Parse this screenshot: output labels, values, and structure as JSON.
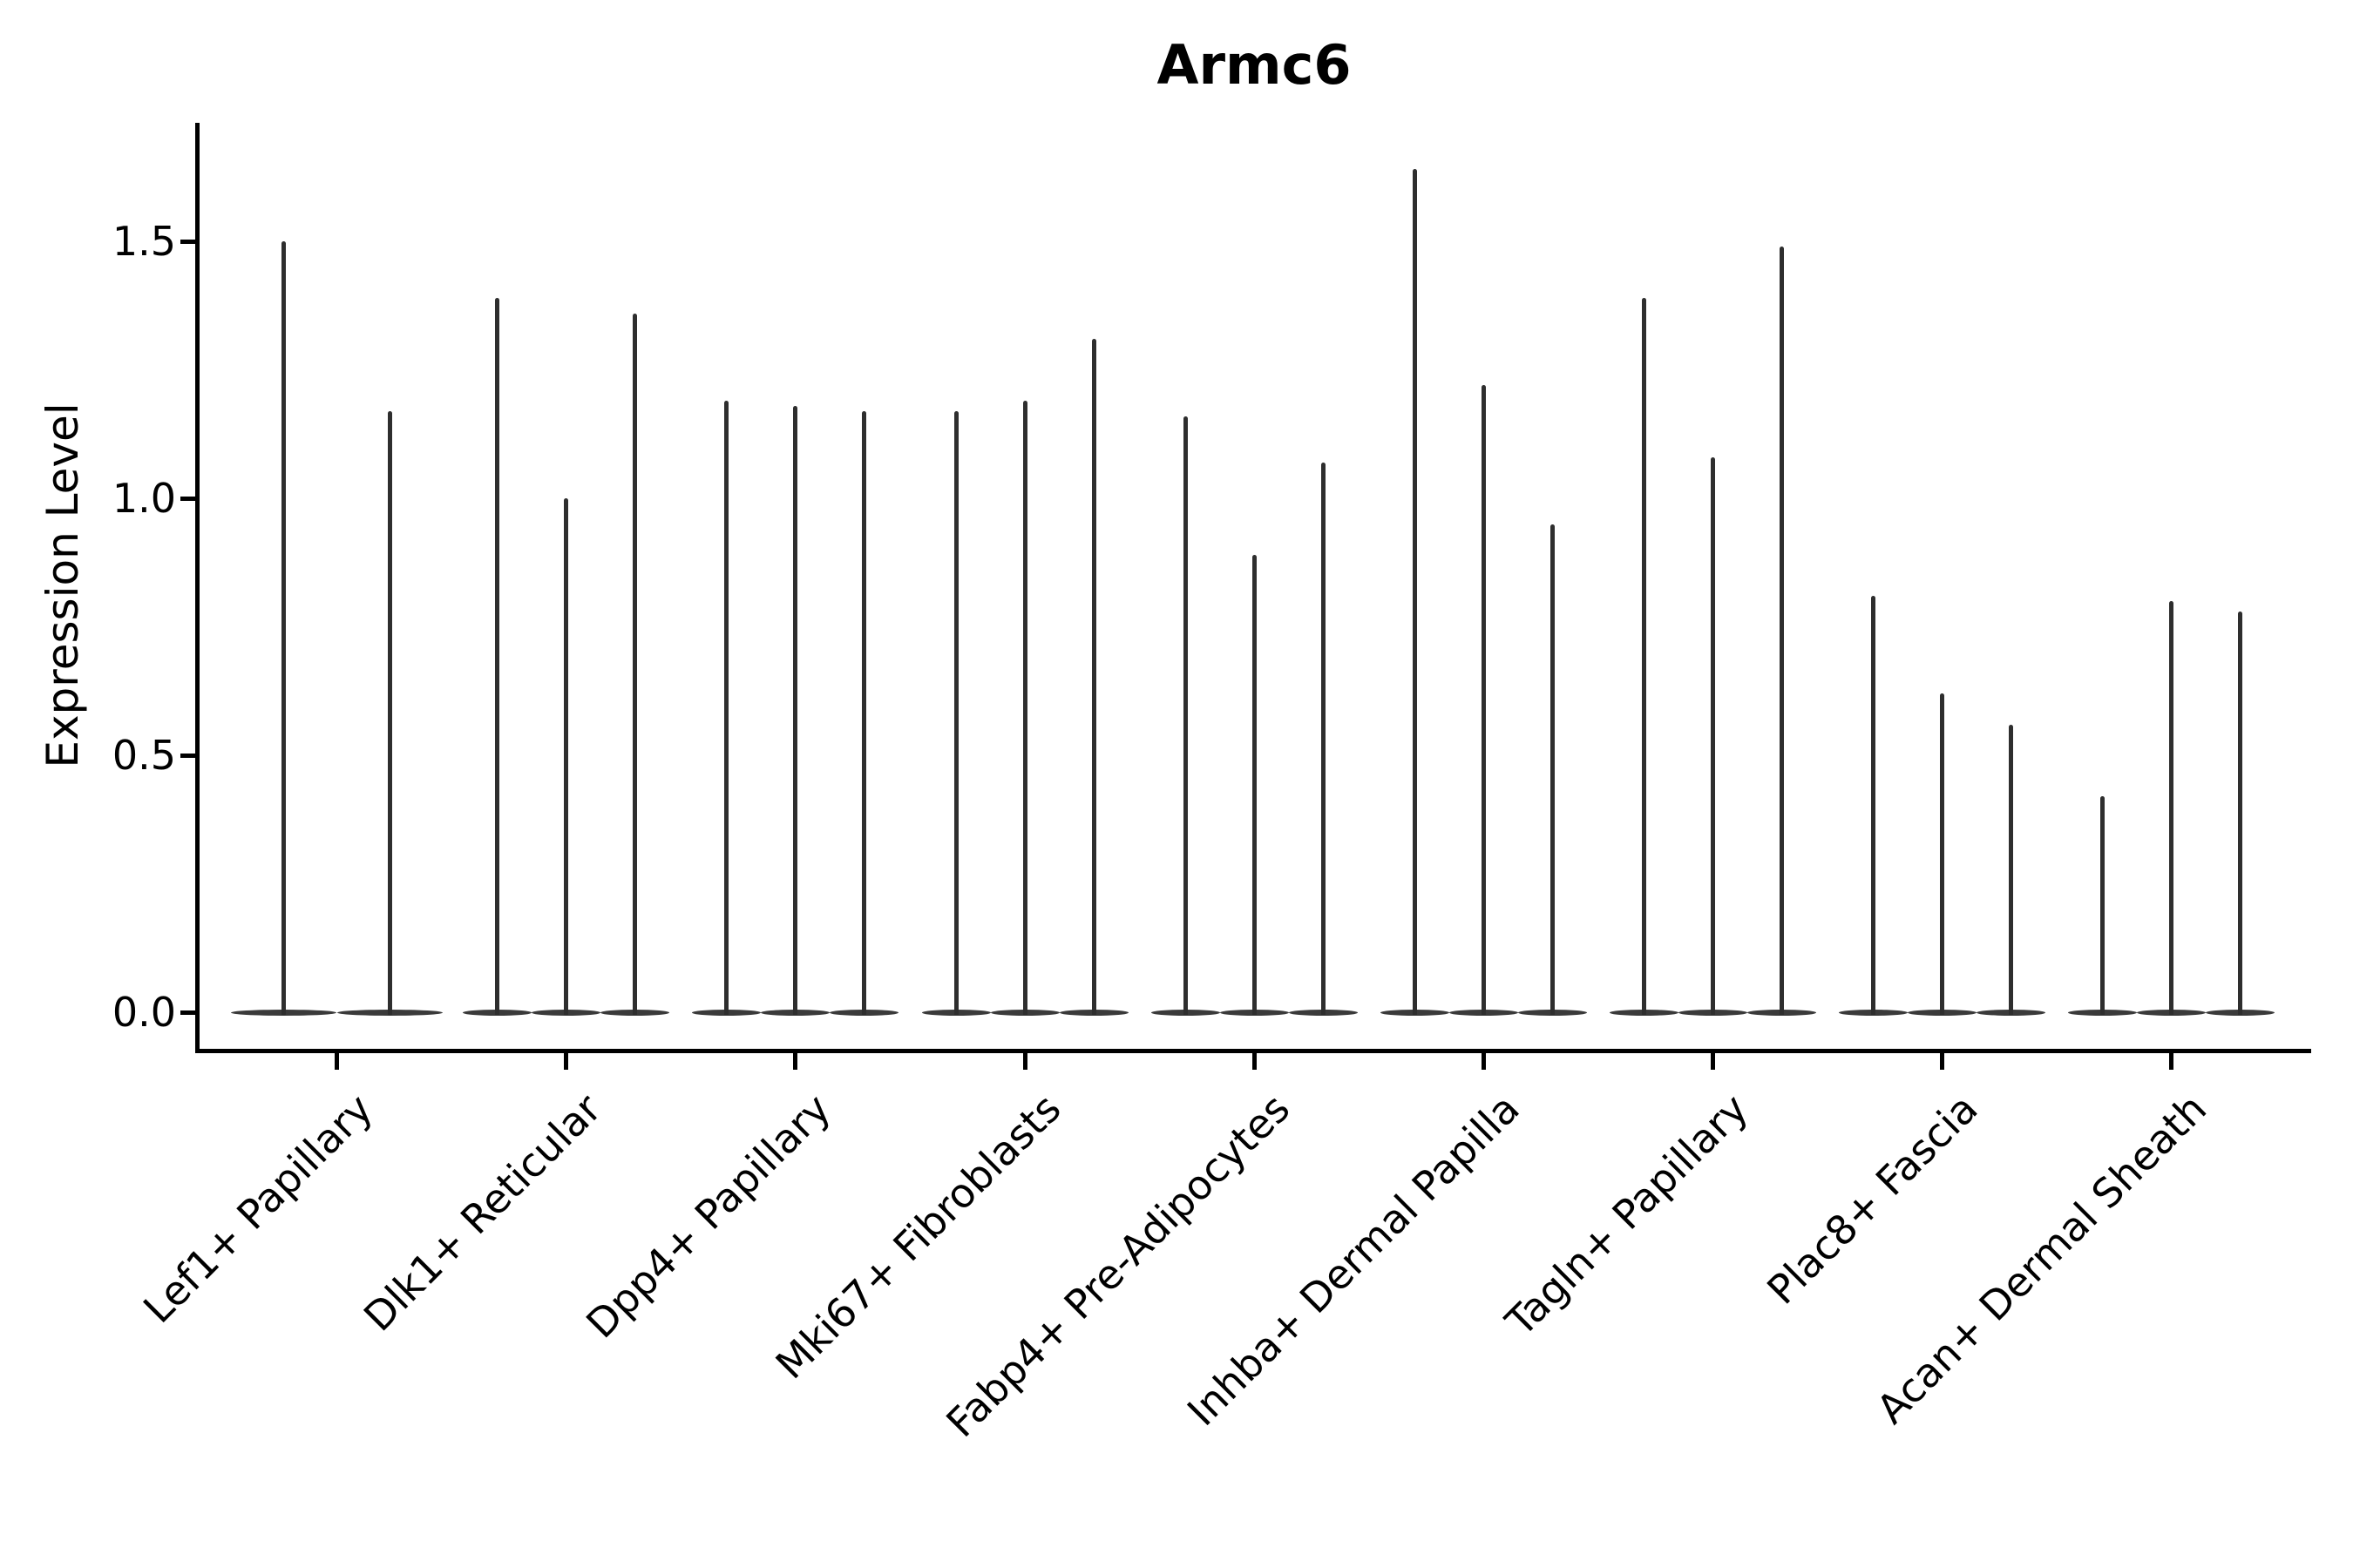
{
  "title": "Armc6",
  "y_axis": {
    "label": "Expression Level",
    "tick_labels": [
      "1.5",
      "1.0",
      "0.5",
      "0.0"
    ]
  },
  "chart_data": {
    "type": "violin",
    "title": "Armc6",
    "xlabel": "",
    "ylabel": "Expression Level",
    "ylim": [
      0,
      1.72
    ],
    "yticks": [
      0.0,
      0.5,
      1.0,
      1.5
    ],
    "grid": false,
    "legend": "none",
    "style": "needle-thin violins (near-zero density except a spike of cells), flat zero-expression lens at baseline, dark gray fill",
    "categories": [
      "Lef1+ Papillary",
      "Dlk1+ Reticular",
      "Dpp4+ Papillary",
      "Mki67+ Fibroblasts",
      "Fabp4+ Pre-Adipocytes",
      "Inhba+ Dermal Papilla",
      "Tagln+ Papillary",
      "Plac8+ Fascia",
      "Acan+ Dermal Sheath"
    ],
    "series": [
      {
        "category": "Lef1+ Papillary",
        "violin_maxima": [
          1.5,
          1.17
        ]
      },
      {
        "category": "Dlk1+ Reticular",
        "violin_maxima": [
          1.39,
          1.0,
          1.36
        ]
      },
      {
        "category": "Dpp4+ Papillary",
        "violin_maxima": [
          1.19,
          1.18,
          1.17
        ]
      },
      {
        "category": "Mki67+ Fibroblasts",
        "violin_maxima": [
          1.17,
          1.19,
          1.31
        ]
      },
      {
        "category": "Fabp4+ Pre-Adipocytes",
        "violin_maxima": [
          1.16,
          0.89,
          1.07
        ]
      },
      {
        "category": "Inhba+ Dermal Papilla",
        "violin_maxima": [
          1.64,
          1.22,
          0.95
        ]
      },
      {
        "category": "Tagln+ Papillary",
        "violin_maxima": [
          1.39,
          1.08,
          1.49
        ]
      },
      {
        "category": "Plac8+ Fascia",
        "violin_maxima": [
          0.81,
          0.62,
          0.56
        ]
      },
      {
        "category": "Acan+ Dermal Sheath",
        "violin_maxima": [
          0.42,
          0.8,
          0.78
        ]
      }
    ],
    "violin_minimum": 0.0,
    "colors": {
      "violin_fill": "#3a3a3a",
      "spike": "#2e2e2e",
      "axis": "#000000",
      "background": "#ffffff"
    }
  }
}
